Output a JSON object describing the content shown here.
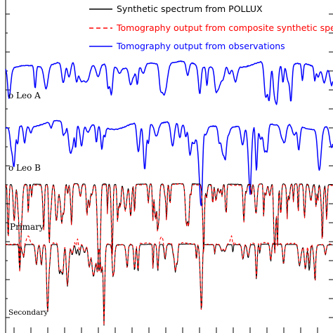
{
  "chart_data": {
    "type": "line",
    "title": "",
    "xlabel": "",
    "ylabel": "",
    "grid": false,
    "legend_placement": "top",
    "legend": [
      {
        "key": "pollux",
        "label": "Synthetic spectrum from POLLUX",
        "color": "#000000",
        "style": "solid"
      },
      {
        "key": "composite",
        "label": "Tomography output from composite synthetic spectra",
        "color": "#ff0000",
        "style": "dashed"
      },
      {
        "key": "observations",
        "label": "Tomography output from observations",
        "color": "#0000ff",
        "style": "solid"
      }
    ],
    "panels": [
      {
        "label": "o Leo A",
        "series": [
          "observations"
        ]
      },
      {
        "label": "o Leo B",
        "series": [
          "observations"
        ]
      },
      {
        "label": "Primary",
        "series": [
          "pollux",
          "composite"
        ]
      },
      {
        "label": "Secondary",
        "series": [
          "pollux",
          "composite"
        ]
      }
    ]
  }
}
